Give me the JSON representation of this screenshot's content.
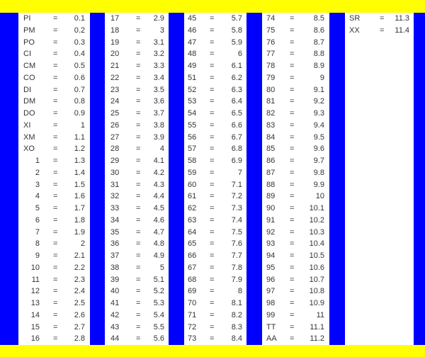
{
  "colors": {
    "band": "#ffff00",
    "strip": "#0000ff",
    "text": "#333333"
  },
  "columns": [
    {
      "rows": [
        [
          "PI",
          "=",
          "0.1"
        ],
        [
          "PM",
          "=",
          "0.2"
        ],
        [
          "PO",
          "=",
          "0.3"
        ],
        [
          "CI",
          "=",
          "0.4"
        ],
        [
          "CM",
          "=",
          "0.5"
        ],
        [
          "CO",
          "=",
          "0.6"
        ],
        [
          "DI",
          "=",
          "0.7"
        ],
        [
          "DM",
          "=",
          "0.8"
        ],
        [
          "DO",
          "=",
          "0.9"
        ],
        [
          "XI",
          "=",
          "1"
        ],
        [
          "XM",
          "=",
          "1.1"
        ],
        [
          "XO",
          "=",
          "1.2"
        ],
        [
          "1",
          "=",
          "1.3"
        ],
        [
          "2",
          "=",
          "1.4"
        ],
        [
          "3",
          "=",
          "1.5"
        ],
        [
          "4",
          "=",
          "1.6"
        ],
        [
          "5",
          "=",
          "1.7"
        ],
        [
          "6",
          "=",
          "1.8"
        ],
        [
          "7",
          "=",
          "1.9"
        ],
        [
          "8",
          "=",
          "2"
        ],
        [
          "9",
          "=",
          "2.1"
        ],
        [
          "10",
          "=",
          "2.2"
        ],
        [
          "11",
          "=",
          "2.3"
        ],
        [
          "12",
          "=",
          "2.4"
        ],
        [
          "13",
          "=",
          "2.5"
        ],
        [
          "14",
          "=",
          "2.6"
        ],
        [
          "15",
          "=",
          "2.7"
        ],
        [
          "16",
          "=",
          "2.8"
        ]
      ]
    },
    {
      "rows": [
        [
          "17",
          "=",
          "2.9"
        ],
        [
          "18",
          "=",
          "3"
        ],
        [
          "19",
          "=",
          "3.1"
        ],
        [
          "20",
          "=",
          "3.2"
        ],
        [
          "21",
          "=",
          "3.3"
        ],
        [
          "22",
          "=",
          "3.4"
        ],
        [
          "23",
          "=",
          "3.5"
        ],
        [
          "24",
          "=",
          "3.6"
        ],
        [
          "25",
          "=",
          "3.7"
        ],
        [
          "26",
          "=",
          "3.8"
        ],
        [
          "27",
          "=",
          "3.9"
        ],
        [
          "28",
          "=",
          "4"
        ],
        [
          "29",
          "=",
          "4.1"
        ],
        [
          "30",
          "=",
          "4.2"
        ],
        [
          "31",
          "=",
          "4.3"
        ],
        [
          "32",
          "=",
          "4.4"
        ],
        [
          "33",
          "=",
          "4.5"
        ],
        [
          "34",
          "=",
          "4.6"
        ],
        [
          "35",
          "=",
          "4.7"
        ],
        [
          "36",
          "=",
          "4.8"
        ],
        [
          "37",
          "=",
          "4.9"
        ],
        [
          "38",
          "=",
          "5"
        ],
        [
          "39",
          "=",
          "5.1"
        ],
        [
          "40",
          "=",
          "5.2"
        ],
        [
          "41",
          "=",
          "5.3"
        ],
        [
          "42",
          "=",
          "5.4"
        ],
        [
          "43",
          "=",
          "5.5"
        ],
        [
          "44",
          "=",
          "5.6"
        ]
      ]
    },
    {
      "rows": [
        [
          "45",
          "=",
          "5.7"
        ],
        [
          "46",
          "=",
          "5.8"
        ],
        [
          "47",
          "=",
          "5.9"
        ],
        [
          "48",
          "=",
          "6"
        ],
        [
          "49",
          "=",
          "6.1"
        ],
        [
          "51",
          "=",
          "6.2"
        ],
        [
          "52",
          "=",
          "6.3"
        ],
        [
          "53",
          "=",
          "6.4"
        ],
        [
          "54",
          "=",
          "6.5"
        ],
        [
          "55",
          "=",
          "6.6"
        ],
        [
          "56",
          "=",
          "6.7"
        ],
        [
          "57",
          "=",
          "6.8"
        ],
        [
          "58",
          "=",
          "6.9"
        ],
        [
          "59",
          "=",
          "7"
        ],
        [
          "60",
          "=",
          "7.1"
        ],
        [
          "61",
          "=",
          "7.2"
        ],
        [
          "62",
          "=",
          "7.3"
        ],
        [
          "63",
          "=",
          "7.4"
        ],
        [
          "64",
          "=",
          "7.5"
        ],
        [
          "65",
          "=",
          "7.6"
        ],
        [
          "66",
          "=",
          "7.7"
        ],
        [
          "67",
          "=",
          "7.8"
        ],
        [
          "68",
          "=",
          "7.9"
        ],
        [
          "69",
          "=",
          "8"
        ],
        [
          "70",
          "=",
          "8.1"
        ],
        [
          "71",
          "=",
          "8.2"
        ],
        [
          "72",
          "=",
          "8.3"
        ],
        [
          "73",
          "=",
          "8.4"
        ]
      ]
    },
    {
      "rows": [
        [
          "74",
          "=",
          "8.5"
        ],
        [
          "75",
          "=",
          "8.6"
        ],
        [
          "76",
          "=",
          "8.7"
        ],
        [
          "77",
          "=",
          "8.8"
        ],
        [
          "78",
          "=",
          "8.9"
        ],
        [
          "79",
          "=",
          "9"
        ],
        [
          "80",
          "=",
          "9.1"
        ],
        [
          "81",
          "=",
          "9.2"
        ],
        [
          "82",
          "=",
          "9.3"
        ],
        [
          "83",
          "=",
          "9.4"
        ],
        [
          "84",
          "=",
          "9.5"
        ],
        [
          "85",
          "=",
          "9.6"
        ],
        [
          "86",
          "=",
          "9.7"
        ],
        [
          "87",
          "=",
          "9.8"
        ],
        [
          "88",
          "=",
          "9.9"
        ],
        [
          "89",
          "=",
          "10"
        ],
        [
          "90",
          "=",
          "10.1"
        ],
        [
          "91",
          "=",
          "10.2"
        ],
        [
          "92",
          "=",
          "10.3"
        ],
        [
          "93",
          "=",
          "10.4"
        ],
        [
          "94",
          "=",
          "10.5"
        ],
        [
          "95",
          "=",
          "10.6"
        ],
        [
          "96",
          "=",
          "10.7"
        ],
        [
          "97",
          "=",
          "10.8"
        ],
        [
          "98",
          "=",
          "10.9"
        ],
        [
          "99",
          "=",
          "11"
        ],
        [
          "TT",
          "=",
          "11.1"
        ],
        [
          "AA",
          "=",
          "11.2"
        ]
      ]
    },
    {
      "rows": [
        [
          "SR",
          "=",
          "11.3"
        ],
        [
          "XX",
          "=",
          "11.4"
        ]
      ]
    }
  ]
}
